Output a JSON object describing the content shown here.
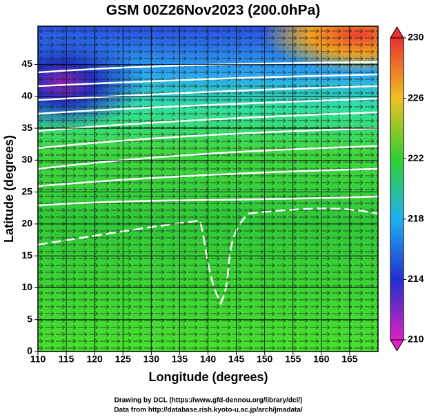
{
  "chart_data": {
    "type": "map",
    "title": "GSM 00Z26Nov2023 (200.0hPa)",
    "x_label": "Longitude (degrees)",
    "y_label": "Latitude  (degrees)",
    "xlim": [
      110,
      170
    ],
    "xticks": [
      110,
      115,
      120,
      125,
      130,
      135,
      140,
      145,
      150,
      155,
      160,
      165
    ],
    "ylim": [
      0,
      51
    ],
    "yticks": [
      0,
      5,
      10,
      15,
      20,
      25,
      30,
      35,
      40,
      45
    ],
    "grid": true,
    "colorbar": {
      "lim": [
        210,
        230
      ],
      "ticks": [
        210,
        214,
        218,
        222,
        226,
        230
      ],
      "colors": [
        "#e020c0",
        "#2030d0",
        "#20b0f0",
        "#30d030",
        "#f0c020",
        "#e83030"
      ]
    }
  },
  "credits": [
    "Drawing by DCL (https://www.gfd-dennou.org/library/dcl/)",
    "Data from http://database.rish.kyoto-u.ac.jp/arch/jmadata/"
  ]
}
